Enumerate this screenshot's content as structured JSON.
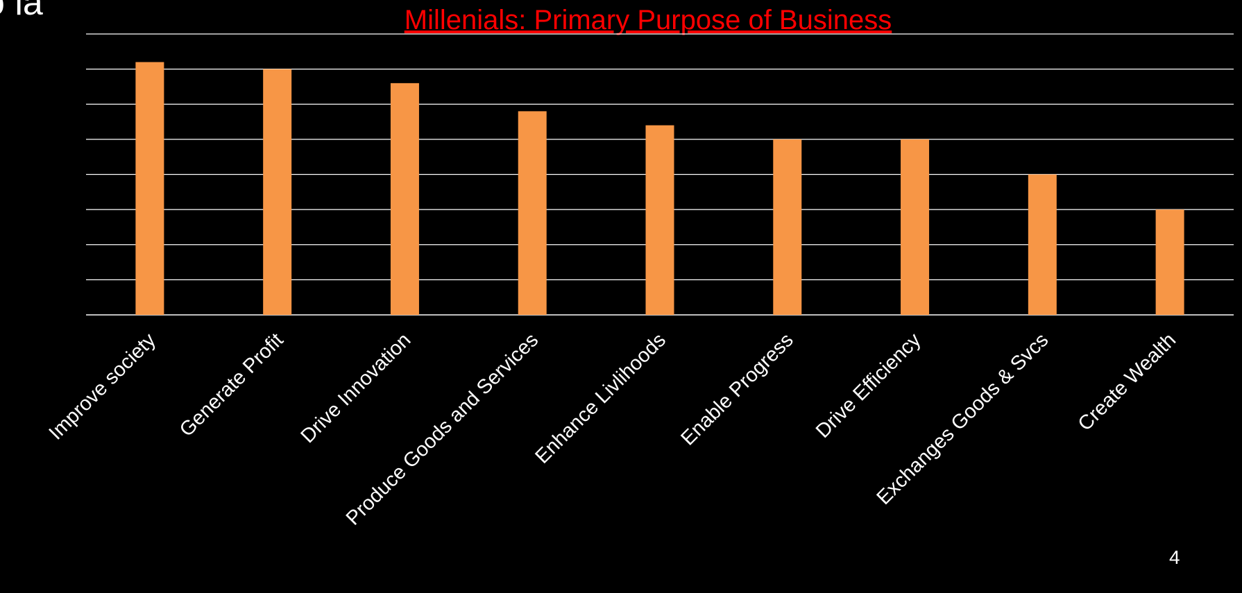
{
  "slide": {
    "cropped_heading": "o la",
    "page_number": "4"
  },
  "colors": {
    "background": "#000000",
    "bar": "#F79646",
    "title": "#FF0000",
    "gridline": "#FFFFFF",
    "tick_label": "#FFFFFF"
  },
  "chart_data": {
    "type": "bar",
    "title": "Millenials: Primary Purpose of Business",
    "categories": [
      "Improve society",
      "Generate Profit",
      "Drive Innovation",
      "Produce Goods and Services",
      "Enhance Livlihoods",
      "Enable Progress",
      "Drive Efficiency",
      "Exchanges Goods & Svcs",
      "Create Wealth"
    ],
    "values": [
      36,
      35,
      33,
      29,
      27,
      25,
      25,
      20,
      15
    ],
    "ylim": [
      0,
      40
    ],
    "ytick_step": 5,
    "y_tick_labels_visible": false,
    "grid": true,
    "legend": "none",
    "xlabel": "",
    "ylabel": ""
  }
}
